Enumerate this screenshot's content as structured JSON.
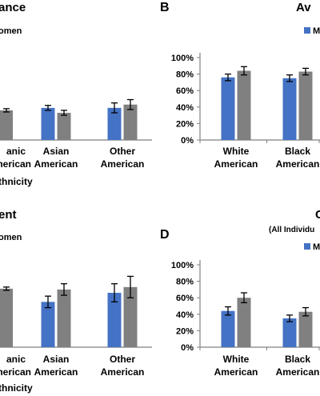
{
  "colors": {
    "series_1": "#4472C4",
    "series_2": "#808080",
    "axis": "#808080",
    "error_bar": "#000000"
  },
  "chart_data": [
    {
      "panel": "A-right-edge",
      "type": "bar",
      "title": "ance",
      "legend_fragment": "omen",
      "x_tick_fragments": [
        {
          "l1": "anic",
          "l2": "merican",
          "x": 20
        }
      ],
      "xlabel": "thnicity",
      "categories": [
        "Asian American",
        "Other American"
      ],
      "series": [
        {
          "values": [
            0.39,
            0.39
          ]
        },
        {
          "values": [
            0.33,
            0.43
          ]
        }
      ],
      "error": [
        [
          0.03,
          0.06
        ],
        [
          0.03,
          0.06
        ]
      ],
      "partial_series2_values": [
        0.36
      ],
      "ylim": [
        0,
        1
      ]
    },
    {
      "panel": "B",
      "type": "bar",
      "panel_label": "B",
      "title": "Av",
      "legend_fragment": "M",
      "categories": [
        "White American",
        "Black American"
      ],
      "y_ticks": [
        "0%",
        "20%",
        "40%",
        "60%",
        "80%",
        "100%"
      ],
      "ylim": [
        0,
        1
      ],
      "series": [
        {
          "values": [
            0.76,
            0.75
          ]
        },
        {
          "values": [
            0.84,
            0.83
          ]
        }
      ],
      "error": [
        [
          0.04,
          0.04
        ],
        [
          0.05,
          0.04
        ]
      ]
    },
    {
      "panel": "C-right-edge",
      "type": "bar",
      "title": "ent",
      "legend_fragment": "omen",
      "x_tick_fragments": [
        {
          "l1": "anic",
          "l2": "merican",
          "x": 20
        }
      ],
      "xlabel": "thnicity",
      "categories": [
        "Asian American",
        "Other American"
      ],
      "series": [
        {
          "values": [
            0.55,
            0.66
          ]
        },
        {
          "values": [
            0.7,
            0.73
          ]
        }
      ],
      "error": [
        [
          0.07,
          0.11
        ],
        [
          0.07,
          0.13
        ]
      ],
      "partial_series2_values": [
        0.71
      ],
      "ylim": [
        0,
        1
      ]
    },
    {
      "panel": "D",
      "type": "bar",
      "panel_label": "D",
      "title": "C",
      "subtitle": "(All Individu",
      "legend_fragment": "M",
      "categories": [
        "White American",
        "Black American"
      ],
      "y_ticks": [
        "0%",
        "20%",
        "40%",
        "60%",
        "80%",
        "100%"
      ],
      "ylim": [
        0,
        1
      ],
      "series": [
        {
          "values": [
            0.44,
            0.35
          ]
        },
        {
          "values": [
            0.6,
            0.43
          ]
        }
      ],
      "error": [
        [
          0.05,
          0.04
        ],
        [
          0.06,
          0.05
        ]
      ]
    }
  ]
}
